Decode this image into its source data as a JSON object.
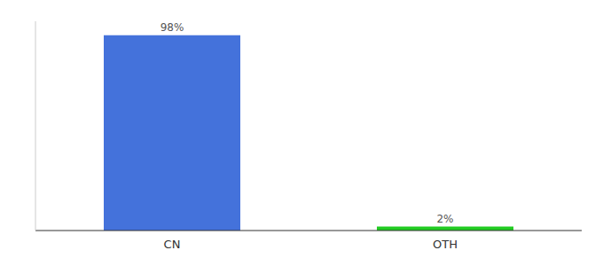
{
  "chart_data": {
    "type": "bar",
    "categories": [
      "CN",
      "OTH"
    ],
    "values": [
      98,
      2
    ],
    "colors": [
      "#4472db",
      "#22cc22"
    ],
    "value_labels": [
      "98%",
      "2%"
    ],
    "data_labels": true,
    "ylim": [
      0,
      105
    ],
    "tick_labels": "x"
  }
}
